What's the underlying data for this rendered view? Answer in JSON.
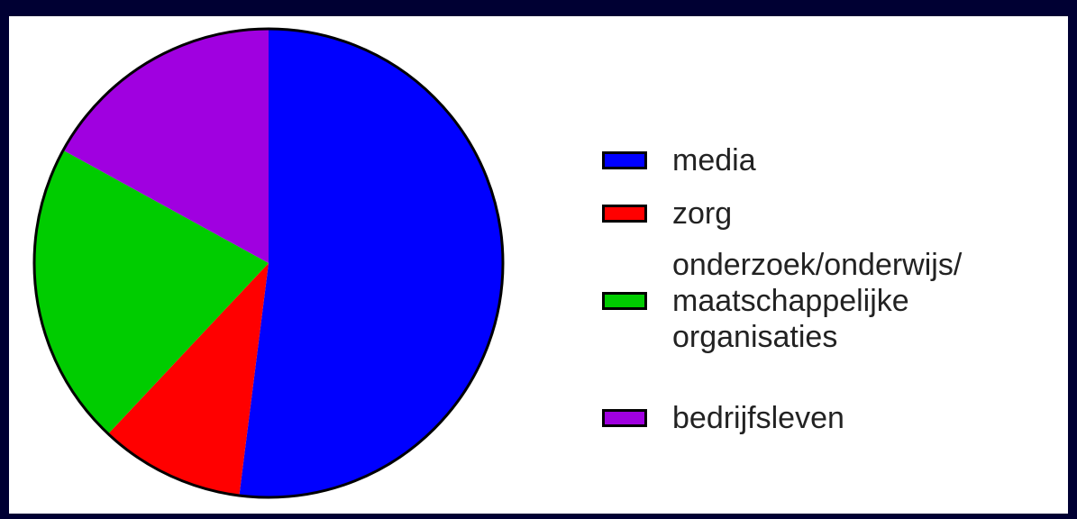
{
  "chart_data": {
    "type": "pie",
    "title": "",
    "start_angle": "12 o'clock, clockwise",
    "slices": [
      {
        "label": "media",
        "value": 52,
        "color": "#0000ff"
      },
      {
        "label": "zorg",
        "value": 10,
        "color": "#ff0000"
      },
      {
        "label": "onderzoek/onderwijs/\nmaatschappelijke\norganisaties",
        "value": 21,
        "color": "#00cc00"
      },
      {
        "label": "bedrijfsleven",
        "value": 17,
        "color": "#a000e0"
      }
    ],
    "legend": {
      "placement": "right",
      "entries": [
        {
          "label": "media",
          "color": "#0000ff"
        },
        {
          "label": "zorg",
          "color": "#ff0000"
        },
        {
          "label": "onderzoek/onderwijs/\nmaatschappelijke\norganisaties",
          "color": "#00cc00"
        },
        {
          "label": "bedrijfsleven",
          "color": "#a000e0"
        }
      ]
    }
  },
  "page": {
    "background_color": "#000033",
    "panel_color": "#ffffff"
  }
}
